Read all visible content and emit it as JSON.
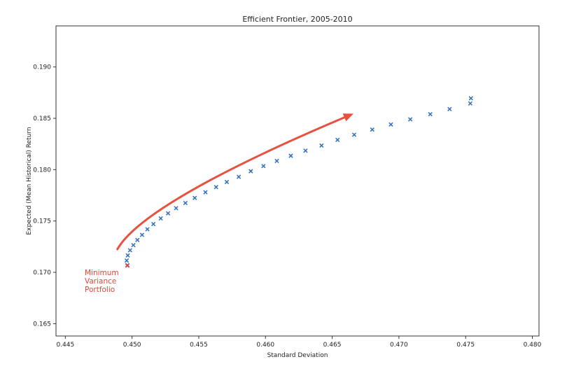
{
  "chart_data": {
    "type": "scatter",
    "title": "Efficient Frontier, 2005-2010",
    "xlabel": "Standard Deviation",
    "ylabel": "Expected (Mean Historical) Return",
    "xlim": [
      0.4443,
      0.4805
    ],
    "ylim": [
      0.1638,
      0.194
    ],
    "xticks": [
      0.445,
      0.45,
      0.455,
      0.46,
      0.465,
      0.47,
      0.475,
      0.48
    ],
    "xtick_labels": [
      "0.445",
      "0.450",
      "0.455",
      "0.460",
      "0.465",
      "0.470",
      "0.475",
      "0.480"
    ],
    "yticks": [
      0.165,
      0.17,
      0.175,
      0.18,
      0.185,
      0.19
    ],
    "ytick_labels": [
      "0.165",
      "0.170",
      "0.175",
      "0.180",
      "0.185",
      "0.190"
    ],
    "grid": false,
    "marker": "x",
    "series_color": "#2f6fbf",
    "highlight_color": "#e8443a",
    "points": [
      {
        "x": 0.44965,
        "y": 0.1707
      },
      {
        "x": 0.4496,
        "y": 0.17115
      },
      {
        "x": 0.44968,
        "y": 0.17165
      },
      {
        "x": 0.44985,
        "y": 0.17215
      },
      {
        "x": 0.4501,
        "y": 0.17265
      },
      {
        "x": 0.4504,
        "y": 0.17315
      },
      {
        "x": 0.45075,
        "y": 0.17365
      },
      {
        "x": 0.45115,
        "y": 0.1742
      },
      {
        "x": 0.4516,
        "y": 0.1747
      },
      {
        "x": 0.45215,
        "y": 0.17525
      },
      {
        "x": 0.4527,
        "y": 0.17575
      },
      {
        "x": 0.4533,
        "y": 0.17625
      },
      {
        "x": 0.454,
        "y": 0.17675
      },
      {
        "x": 0.4547,
        "y": 0.17725
      },
      {
        "x": 0.4555,
        "y": 0.1778
      },
      {
        "x": 0.4563,
        "y": 0.1783
      },
      {
        "x": 0.4571,
        "y": 0.1788
      },
      {
        "x": 0.458,
        "y": 0.1793
      },
      {
        "x": 0.4589,
        "y": 0.17985
      },
      {
        "x": 0.45985,
        "y": 0.18035
      },
      {
        "x": 0.46085,
        "y": 0.18085
      },
      {
        "x": 0.4619,
        "y": 0.18135
      },
      {
        "x": 0.463,
        "y": 0.18185
      },
      {
        "x": 0.4642,
        "y": 0.18235
      },
      {
        "x": 0.4654,
        "y": 0.1829
      },
      {
        "x": 0.46665,
        "y": 0.1834
      },
      {
        "x": 0.468,
        "y": 0.1839
      },
      {
        "x": 0.4694,
        "y": 0.1844
      },
      {
        "x": 0.47085,
        "y": 0.1849
      },
      {
        "x": 0.47235,
        "y": 0.1854
      },
      {
        "x": 0.4738,
        "y": 0.1859
      },
      {
        "x": 0.47535,
        "y": 0.18645
      },
      {
        "x": 0.4754,
        "y": 0.18695
      }
    ],
    "highlight": {
      "x": 0.44965,
      "y": 0.17065
    },
    "annotation": {
      "lines": [
        "Minimum",
        "Variance",
        "Portfolio"
      ],
      "color": "#e8443a"
    },
    "arrow": {
      "color": "#e8513f",
      "path": [
        [
          0.4489,
          0.17225
        ],
        [
          0.4504,
          0.1757
        ],
        [
          0.4575,
          0.1805
        ],
        [
          0.4664,
          0.18535
        ]
      ]
    }
  }
}
